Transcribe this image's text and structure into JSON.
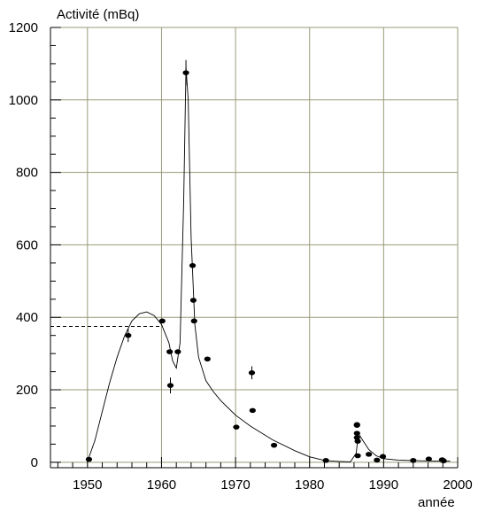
{
  "chart_data": {
    "type": "scatter",
    "title": "",
    "ylabel": "Activité (mBq)",
    "xlabel": "année",
    "xlim": [
      1945,
      2000
    ],
    "ylim": [
      -15,
      1200
    ],
    "x_ticks": [
      1950,
      1960,
      1970,
      1980,
      1990,
      2000
    ],
    "y_ticks": [
      0,
      200,
      400,
      600,
      800,
      1000,
      1200
    ],
    "grid": true,
    "legend": "none",
    "colors": {
      "grid": "#9a9a78",
      "points": "#000000",
      "curve": "#000000"
    },
    "series": [
      {
        "kind": "points",
        "x": [
          1950.2,
          1955.5,
          1960.1,
          1961.1,
          1961.2,
          1962.2,
          1963.3,
          1964.2,
          1964.3,
          1964.4,
          1966.2,
          1970.1,
          1972.2,
          1972.3,
          1975.2,
          1982.2,
          1986.4,
          1986.4,
          1986.4,
          1986.5,
          1986.5,
          1986.4,
          1988.0,
          1989.1,
          1989.9,
          1994.0,
          1996.1,
          1997.9,
          1998.1
        ],
        "y": [
          8,
          350,
          390,
          305,
          212,
          305,
          1075,
          543,
          447,
          390,
          285,
          97,
          247,
          143,
          47,
          5,
          104,
          80,
          68,
          58,
          18,
          102,
          22,
          6,
          16,
          5,
          9,
          7,
          4
        ],
        "error": [
          0,
          18,
          0,
          0,
          22,
          0,
          35,
          0,
          0,
          0,
          0,
          0,
          18,
          0,
          0,
          0,
          0,
          0,
          0,
          0,
          0,
          0,
          0,
          0,
          0,
          0,
          0,
          0,
          0
        ]
      },
      {
        "kind": "curve",
        "x": [
          1950,
          1951,
          1952,
          1953,
          1954,
          1955,
          1956,
          1957,
          1958,
          1959,
          1960,
          1961,
          1961.5,
          1962,
          1962.5,
          1963,
          1963.3,
          1963.6,
          1964,
          1964.5,
          1965,
          1966,
          1967,
          1968,
          1970,
          1972,
          1975,
          1978,
          1980,
          1982,
          1984,
          1985.5,
          1986.3,
          1986.6,
          1987,
          1988,
          1989,
          1990,
          1992,
          1995,
          1998,
          1999
        ],
        "y": [
          2,
          60,
          140,
          220,
          290,
          348,
          390,
          410,
          415,
          405,
          380,
          330,
          280,
          260,
          330,
          720,
          1090,
          1000,
          620,
          380,
          290,
          225,
          195,
          170,
          130,
          100,
          62,
          32,
          15,
          5,
          2,
          1,
          25,
          80,
          66,
          35,
          18,
          10,
          6,
          4,
          3,
          3
        ]
      }
    ],
    "annotations": [
      {
        "kind": "dashed-line",
        "from": [
          1945,
          375
        ],
        "to": [
          1960,
          375
        ]
      }
    ]
  }
}
